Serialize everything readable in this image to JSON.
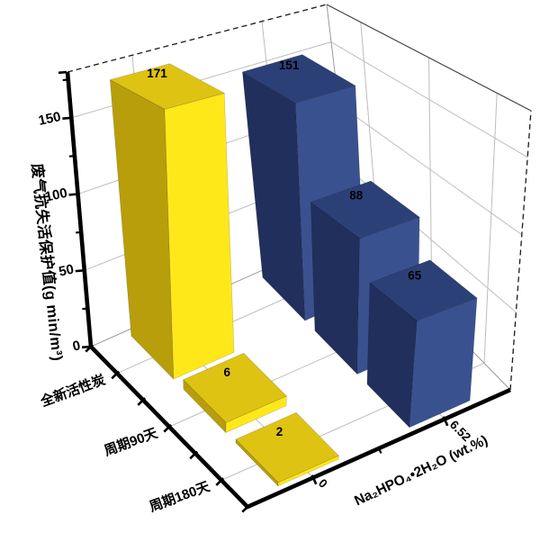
{
  "chart_data": {
    "type": "bar",
    "projection": "3d",
    "title": "",
    "categories": [
      "全新活性炭",
      "周期90天",
      "周期180天"
    ],
    "series": [
      {
        "name": "0",
        "values": [
          171,
          6,
          2
        ],
        "face_colors": {
          "top": "#dfc313",
          "left": "#b89e0b",
          "right": "#ffe81a"
        },
        "value_label_color": "#000000"
      },
      {
        "name": "6.52",
        "values": [
          151,
          88,
          65
        ],
        "face_colors": {
          "top": "#2c4078",
          "left": "#212f5c",
          "right": "#3a5190"
        },
        "value_label_color": "#ffffff"
      }
    ],
    "x_axis": {
      "title": "Na₂HPO₄•2H₂O (wt.%)",
      "tick_labels": [
        "0",
        "6.52"
      ]
    },
    "y_axis": {
      "title": "废气抗失活保护值(g min/m³)",
      "tick_values": [
        0,
        50,
        100,
        150
      ],
      "tick_labels": [
        "0",
        "50",
        "100",
        "150"
      ],
      "minor_tick_values": [
        25,
        75,
        125,
        175
      ],
      "max": 180
    },
    "ylim": [
      0,
      180
    ],
    "grid": true,
    "legend": "none",
    "colors": {
      "grid": "#bdbdbd",
      "axis": "#000000",
      "dashed_edge": "#1a1a1a",
      "thin_edge": "#999999",
      "dark_edge": "#3c3c3c",
      "background": "#ffffff"
    }
  }
}
